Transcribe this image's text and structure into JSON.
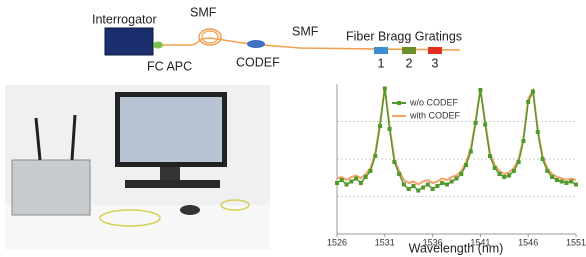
{
  "diagram": {
    "interrogator": "Interrogator",
    "smf_1": "SMF",
    "fc_apc": "FC APC",
    "codef": "CODEF",
    "smf_2": "SMF",
    "fbg_title": "Fiber Bragg Gratings",
    "fbg_labels": [
      "1",
      "2",
      "3"
    ]
  },
  "chart_data": {
    "type": "line",
    "x_label": "Wavelength (nm)",
    "x": [
      1526,
      1526.5,
      1527,
      1527.5,
      1528,
      1528.5,
      1529,
      1529.5,
      1530,
      1530.5,
      1531,
      1531.5,
      1532,
      1532.5,
      1533,
      1533.5,
      1534,
      1534.5,
      1535,
      1535.5,
      1536,
      1536.5,
      1537,
      1537.5,
      1538,
      1538.5,
      1539,
      1539.5,
      1540,
      1540.5,
      1541,
      1541.5,
      1542,
      1542.5,
      1543,
      1543.5,
      1544,
      1544.5,
      1545,
      1545.5,
      1546,
      1546.5,
      1547,
      1547.5,
      1548,
      1548.5,
      1549,
      1549.5,
      1550,
      1550.5,
      1551
    ],
    "series": [
      {
        "name": "w/o CODEF",
        "color": "#4f9a2a",
        "values": [
          0.34,
          0.36,
          0.33,
          0.35,
          0.37,
          0.34,
          0.38,
          0.42,
          0.52,
          0.72,
          0.97,
          0.7,
          0.48,
          0.4,
          0.33,
          0.3,
          0.32,
          0.29,
          0.31,
          0.33,
          0.3,
          0.32,
          0.34,
          0.33,
          0.35,
          0.37,
          0.4,
          0.46,
          0.55,
          0.74,
          0.96,
          0.73,
          0.52,
          0.44,
          0.4,
          0.38,
          0.39,
          0.42,
          0.48,
          0.62,
          0.88,
          0.95,
          0.68,
          0.5,
          0.42,
          0.38,
          0.36,
          0.35,
          0.34,
          0.35,
          0.33
        ]
      },
      {
        "name": "with CODEF",
        "color": "#f5a36a",
        "values": [
          0.37,
          0.38,
          0.36,
          0.38,
          0.39,
          0.37,
          0.4,
          0.44,
          0.54,
          0.74,
          0.98,
          0.72,
          0.5,
          0.42,
          0.36,
          0.34,
          0.35,
          0.33,
          0.35,
          0.36,
          0.34,
          0.35,
          0.37,
          0.36,
          0.38,
          0.39,
          0.42,
          0.48,
          0.57,
          0.76,
          0.97,
          0.75,
          0.54,
          0.46,
          0.42,
          0.4,
          0.41,
          0.44,
          0.5,
          0.64,
          0.9,
          0.96,
          0.7,
          0.52,
          0.44,
          0.4,
          0.38,
          0.37,
          0.36,
          0.37,
          0.36
        ]
      }
    ],
    "xlim": [
      1526,
      1551
    ],
    "xticks": [
      1526,
      1531,
      1536,
      1541,
      1546,
      1551
    ],
    "ylim": [
      0,
      1
    ],
    "grid": true,
    "legend": "top"
  }
}
